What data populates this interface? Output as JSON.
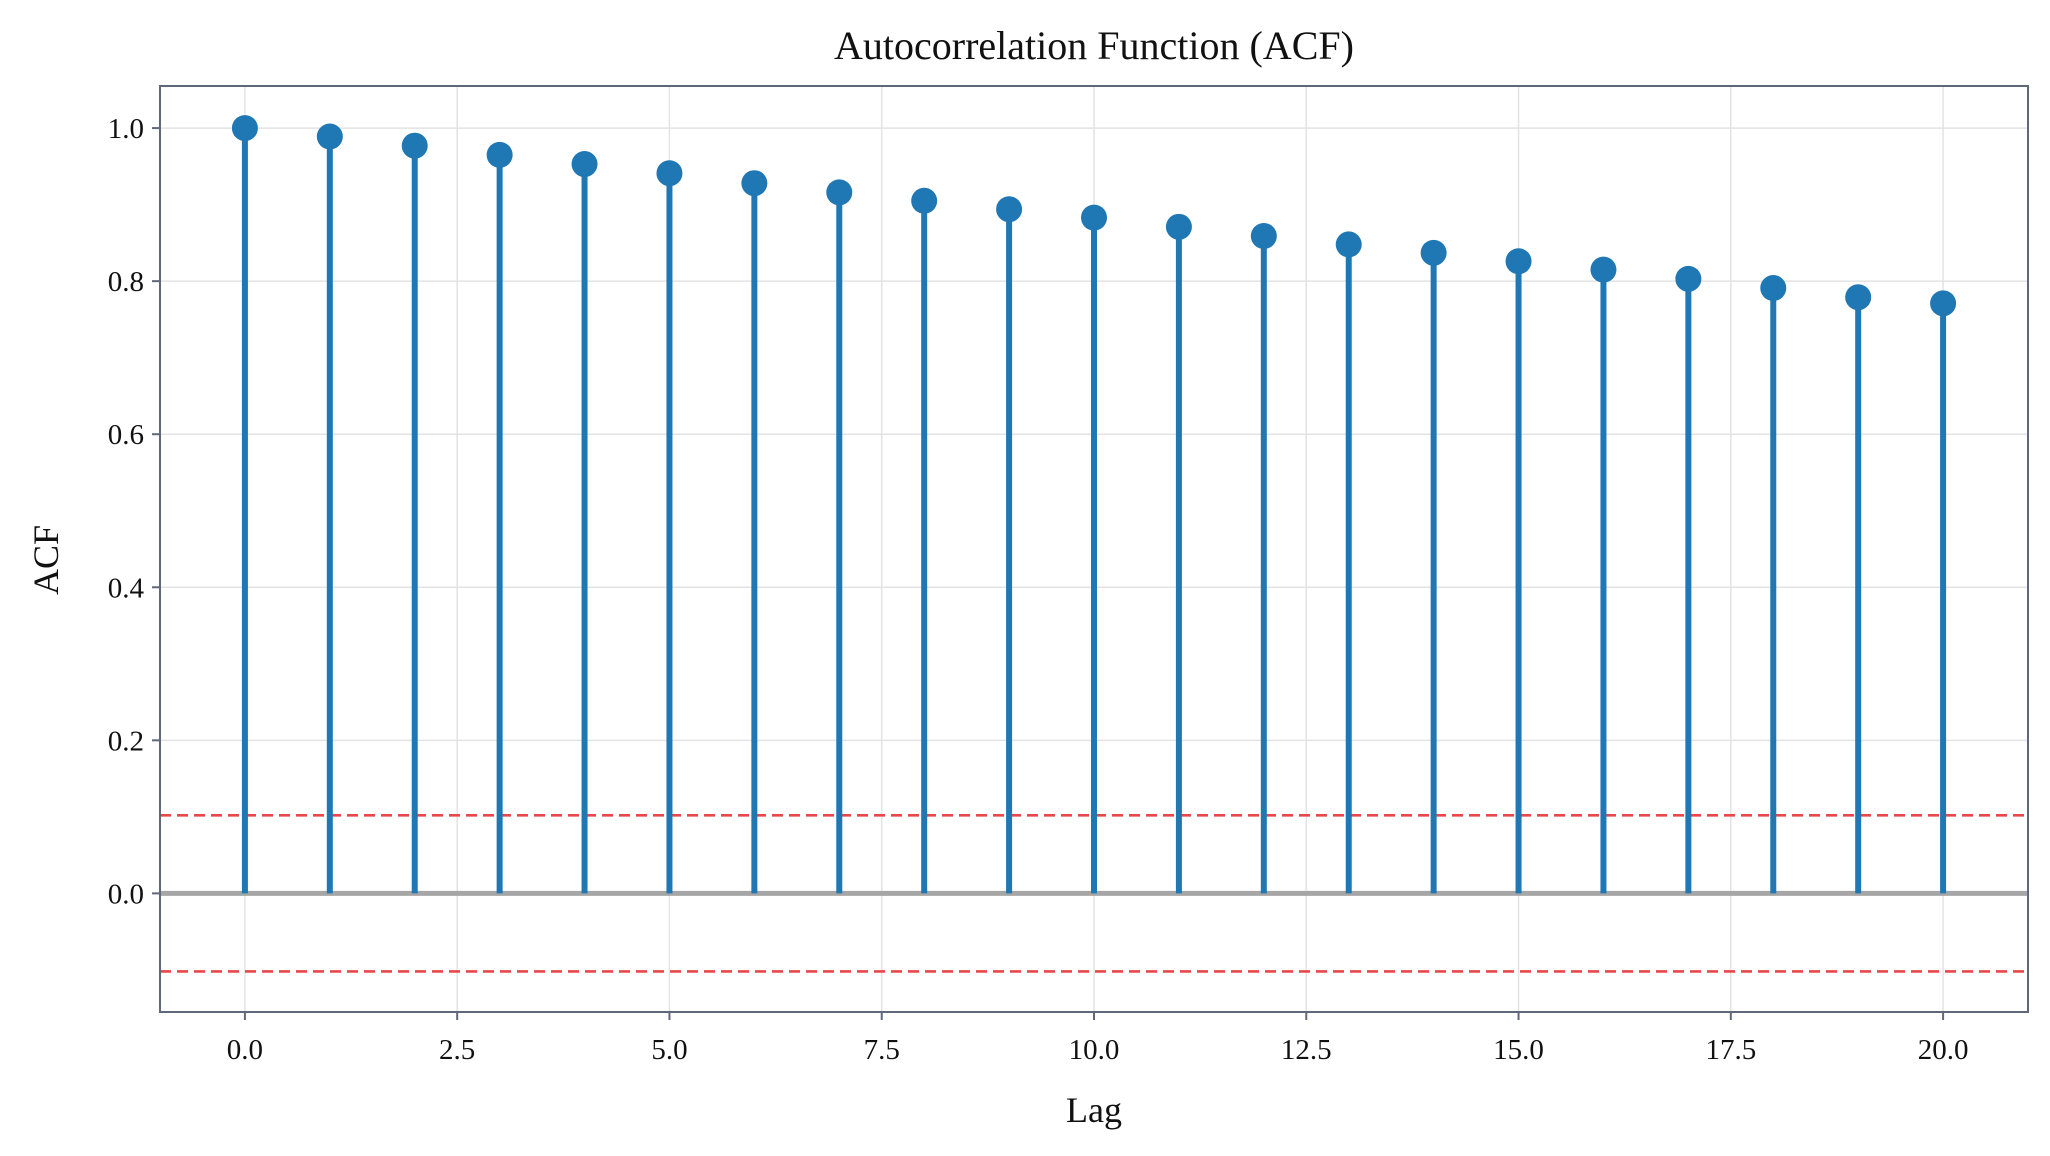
{
  "chart_data": {
    "type": "stem",
    "title": "Autocorrelation Function (ACF)",
    "xlabel": "Lag",
    "ylabel": "ACF",
    "xlim": [
      -1,
      21
    ],
    "ylim": [
      -0.155,
      1.055
    ],
    "xticks": [
      0,
      2.5,
      5,
      7.5,
      10,
      12.5,
      15,
      17.5,
      20
    ],
    "xtick_labels": [
      "0.0",
      "2.5",
      "5.0",
      "7.5",
      "10.0",
      "12.5",
      "15.0",
      "17.5",
      "20.0"
    ],
    "yticks": [
      0,
      0.2,
      0.4,
      0.6,
      0.8,
      1.0
    ],
    "ytick_labels": [
      "0.0",
      "0.2",
      "0.4",
      "0.6",
      "0.8",
      "1.0"
    ],
    "grid": true,
    "series": [
      {
        "x": [
          0,
          1,
          2,
          3,
          4,
          5,
          6,
          7,
          8,
          9,
          10,
          11,
          12,
          13,
          14,
          15,
          16,
          17,
          18,
          19,
          20
        ],
        "values": [
          1.0,
          0.989,
          0.977,
          0.965,
          0.953,
          0.941,
          0.928,
          0.916,
          0.905,
          0.894,
          0.883,
          0.871,
          0.859,
          0.848,
          0.837,
          0.826,
          0.815,
          0.803,
          0.791,
          0.779,
          0.771
        ],
        "color": "#1f77b4"
      }
    ],
    "baseline": {
      "y": 0,
      "color": "#a6a6a6"
    },
    "confidence_bounds": {
      "upper": 0.102,
      "lower": -0.102,
      "color": "#e8484a",
      "style": "dashed"
    },
    "colors": {
      "frame": "#5f6878",
      "grid": "#e3e3e3"
    }
  }
}
